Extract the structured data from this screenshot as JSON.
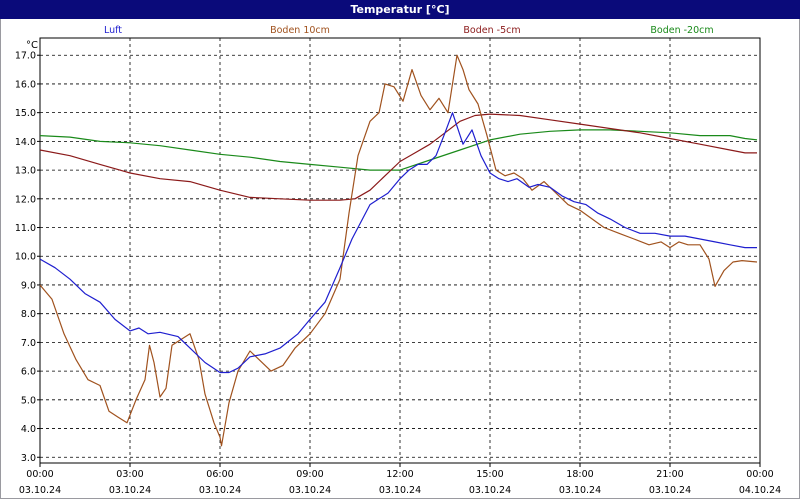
{
  "window": {
    "title": "Temperatur [°C]"
  },
  "chart_data": {
    "type": "line",
    "title": "Temperatur [°C]",
    "ylabel": "°C",
    "xlabel": "",
    "ylim": [
      2.8,
      17.6
    ],
    "xlim": [
      0,
      24
    ],
    "grid": true,
    "legend_placement": "top",
    "yticks": [
      3.0,
      4.0,
      5.0,
      6.0,
      7.0,
      8.0,
      9.0,
      10.0,
      11.0,
      12.0,
      13.0,
      14.0,
      15.0,
      16.0,
      17.0
    ],
    "xticks": [
      {
        "x": 0,
        "time": "00:00",
        "date": "03.10.24"
      },
      {
        "x": 3,
        "time": "03:00",
        "date": "03.10.24"
      },
      {
        "x": 6,
        "time": "06:00",
        "date": "03.10.24"
      },
      {
        "x": 9,
        "time": "09:00",
        "date": "03.10.24"
      },
      {
        "x": 12,
        "time": "12:00",
        "date": "03.10.24"
      },
      {
        "x": 15,
        "time": "15:00",
        "date": "03.10.24"
      },
      {
        "x": 18,
        "time": "18:00",
        "date": "03.10.24"
      },
      {
        "x": 21,
        "time": "21:00",
        "date": "03.10.24"
      },
      {
        "x": 24,
        "time": "00:00",
        "date": "04.10.24"
      }
    ],
    "series": [
      {
        "name": "Luft",
        "color": "#1f1fcf",
        "points": [
          [
            0,
            9.9
          ],
          [
            0.5,
            9.6
          ],
          [
            1,
            9.2
          ],
          [
            1.5,
            8.7
          ],
          [
            2,
            8.4
          ],
          [
            2.5,
            7.8
          ],
          [
            3,
            7.4
          ],
          [
            3.3,
            7.5
          ],
          [
            3.6,
            7.3
          ],
          [
            4,
            7.35
          ],
          [
            4.6,
            7.2
          ],
          [
            5,
            6.8
          ],
          [
            5.5,
            6.3
          ],
          [
            6,
            5.95
          ],
          [
            6.3,
            5.95
          ],
          [
            6.6,
            6.1
          ],
          [
            7,
            6.5
          ],
          [
            7.5,
            6.6
          ],
          [
            8,
            6.8
          ],
          [
            8.6,
            7.3
          ],
          [
            9,
            7.8
          ],
          [
            9.5,
            8.4
          ],
          [
            10,
            9.6
          ],
          [
            10.4,
            10.6
          ],
          [
            11,
            11.8
          ],
          [
            11.3,
            12.0
          ],
          [
            11.6,
            12.2
          ],
          [
            12,
            12.7
          ],
          [
            12.3,
            13.0
          ],
          [
            12.6,
            13.2
          ],
          [
            12.9,
            13.2
          ],
          [
            13.2,
            13.5
          ],
          [
            13.5,
            14.3
          ],
          [
            13.75,
            15.0
          ],
          [
            14.1,
            13.9
          ],
          [
            14.4,
            14.4
          ],
          [
            14.7,
            13.5
          ],
          [
            15,
            12.9
          ],
          [
            15.3,
            12.7
          ],
          [
            15.6,
            12.6
          ],
          [
            15.9,
            12.7
          ],
          [
            16.3,
            12.4
          ],
          [
            16.6,
            12.5
          ],
          [
            17,
            12.4
          ],
          [
            17.4,
            12.1
          ],
          [
            17.8,
            11.9
          ],
          [
            18.2,
            11.8
          ],
          [
            18.6,
            11.5
          ],
          [
            19,
            11.3
          ],
          [
            19.5,
            11.0
          ],
          [
            20,
            10.8
          ],
          [
            20.5,
            10.8
          ],
          [
            21,
            10.7
          ],
          [
            21.5,
            10.7
          ],
          [
            22,
            10.6
          ],
          [
            22.5,
            10.5
          ],
          [
            23,
            10.4
          ],
          [
            23.5,
            10.3
          ],
          [
            23.9,
            10.3
          ]
        ]
      },
      {
        "name": "Boden 10cm",
        "color": "#a0521e",
        "points": [
          [
            0,
            9.0
          ],
          [
            0.4,
            8.5
          ],
          [
            0.8,
            7.3
          ],
          [
            1.2,
            6.4
          ],
          [
            1.6,
            5.7
          ],
          [
            2,
            5.5
          ],
          [
            2.3,
            4.6
          ],
          [
            2.6,
            4.4
          ],
          [
            2.9,
            4.2
          ],
          [
            3.2,
            5.0
          ],
          [
            3.5,
            5.7
          ],
          [
            3.65,
            6.9
          ],
          [
            3.8,
            6.3
          ],
          [
            4,
            5.1
          ],
          [
            4.2,
            5.4
          ],
          [
            4.4,
            6.9
          ],
          [
            4.7,
            7.1
          ],
          [
            5,
            7.3
          ],
          [
            5.3,
            6.4
          ],
          [
            5.5,
            5.2
          ],
          [
            5.8,
            4.2
          ],
          [
            6,
            3.7
          ],
          [
            6.05,
            3.4
          ],
          [
            6.3,
            4.9
          ],
          [
            6.6,
            6.0
          ],
          [
            7,
            6.7
          ],
          [
            7.3,
            6.4
          ],
          [
            7.7,
            6.0
          ],
          [
            8.1,
            6.2
          ],
          [
            8.5,
            6.8
          ],
          [
            9,
            7.3
          ],
          [
            9.5,
            8.0
          ],
          [
            10,
            9.2
          ],
          [
            10.3,
            11.5
          ],
          [
            10.6,
            13.5
          ],
          [
            11,
            14.7
          ],
          [
            11.3,
            15.0
          ],
          [
            11.5,
            16.0
          ],
          [
            11.8,
            15.9
          ],
          [
            12.1,
            15.4
          ],
          [
            12.4,
            16.5
          ],
          [
            12.7,
            15.6
          ],
          [
            13.0,
            15.1
          ],
          [
            13.3,
            15.5
          ],
          [
            13.6,
            15.0
          ],
          [
            13.9,
            17.0
          ],
          [
            14.1,
            16.5
          ],
          [
            14.3,
            15.8
          ],
          [
            14.6,
            15.3
          ],
          [
            14.9,
            14.2
          ],
          [
            15.2,
            13.0
          ],
          [
            15.5,
            12.8
          ],
          [
            15.8,
            12.9
          ],
          [
            16.1,
            12.7
          ],
          [
            16.4,
            12.3
          ],
          [
            16.8,
            12.6
          ],
          [
            17.2,
            12.2
          ],
          [
            17.6,
            11.8
          ],
          [
            18,
            11.6
          ],
          [
            18.4,
            11.3
          ],
          [
            18.8,
            11.0
          ],
          [
            19.3,
            10.8
          ],
          [
            19.8,
            10.6
          ],
          [
            20.3,
            10.4
          ],
          [
            20.7,
            10.5
          ],
          [
            21,
            10.3
          ],
          [
            21.3,
            10.5
          ],
          [
            21.6,
            10.4
          ],
          [
            22,
            10.4
          ],
          [
            22.3,
            9.9
          ],
          [
            22.5,
            8.95
          ],
          [
            22.8,
            9.5
          ],
          [
            23.1,
            9.8
          ],
          [
            23.4,
            9.85
          ],
          [
            23.9,
            9.8
          ]
        ]
      },
      {
        "name": "Boden -5cm",
        "color": "#8b1a1a",
        "points": [
          [
            0,
            13.7
          ],
          [
            1,
            13.5
          ],
          [
            2,
            13.2
          ],
          [
            3,
            12.9
          ],
          [
            4,
            12.7
          ],
          [
            5,
            12.6
          ],
          [
            6,
            12.3
          ],
          [
            7,
            12.05
          ],
          [
            8,
            12.0
          ],
          [
            9,
            11.95
          ],
          [
            10,
            11.95
          ],
          [
            10.5,
            12.0
          ],
          [
            11,
            12.3
          ],
          [
            11.5,
            12.8
          ],
          [
            12,
            13.3
          ],
          [
            12.5,
            13.6
          ],
          [
            13,
            13.9
          ],
          [
            13.5,
            14.3
          ],
          [
            14,
            14.7
          ],
          [
            14.5,
            14.9
          ],
          [
            15,
            14.95
          ],
          [
            16,
            14.9
          ],
          [
            17,
            14.75
          ],
          [
            18,
            14.6
          ],
          [
            19,
            14.45
          ],
          [
            20,
            14.3
          ],
          [
            21,
            14.1
          ],
          [
            22,
            13.9
          ],
          [
            23,
            13.7
          ],
          [
            23.5,
            13.6
          ],
          [
            23.9,
            13.6
          ]
        ]
      },
      {
        "name": "Boden -20cm",
        "color": "#1a8a1a",
        "points": [
          [
            0,
            14.2
          ],
          [
            1,
            14.15
          ],
          [
            2,
            14.0
          ],
          [
            3,
            13.95
          ],
          [
            4,
            13.85
          ],
          [
            5,
            13.7
          ],
          [
            6,
            13.55
          ],
          [
            7,
            13.45
          ],
          [
            8,
            13.3
          ],
          [
            9,
            13.2
          ],
          [
            10,
            13.1
          ],
          [
            11,
            13.0
          ],
          [
            12,
            13.0
          ],
          [
            13,
            13.35
          ],
          [
            14,
            13.7
          ],
          [
            15,
            14.05
          ],
          [
            16,
            14.25
          ],
          [
            17,
            14.35
          ],
          [
            18,
            14.4
          ],
          [
            19,
            14.4
          ],
          [
            20,
            14.35
          ],
          [
            21,
            14.3
          ],
          [
            22,
            14.2
          ],
          [
            23,
            14.2
          ],
          [
            23.5,
            14.1
          ],
          [
            23.9,
            14.05
          ]
        ]
      }
    ]
  }
}
